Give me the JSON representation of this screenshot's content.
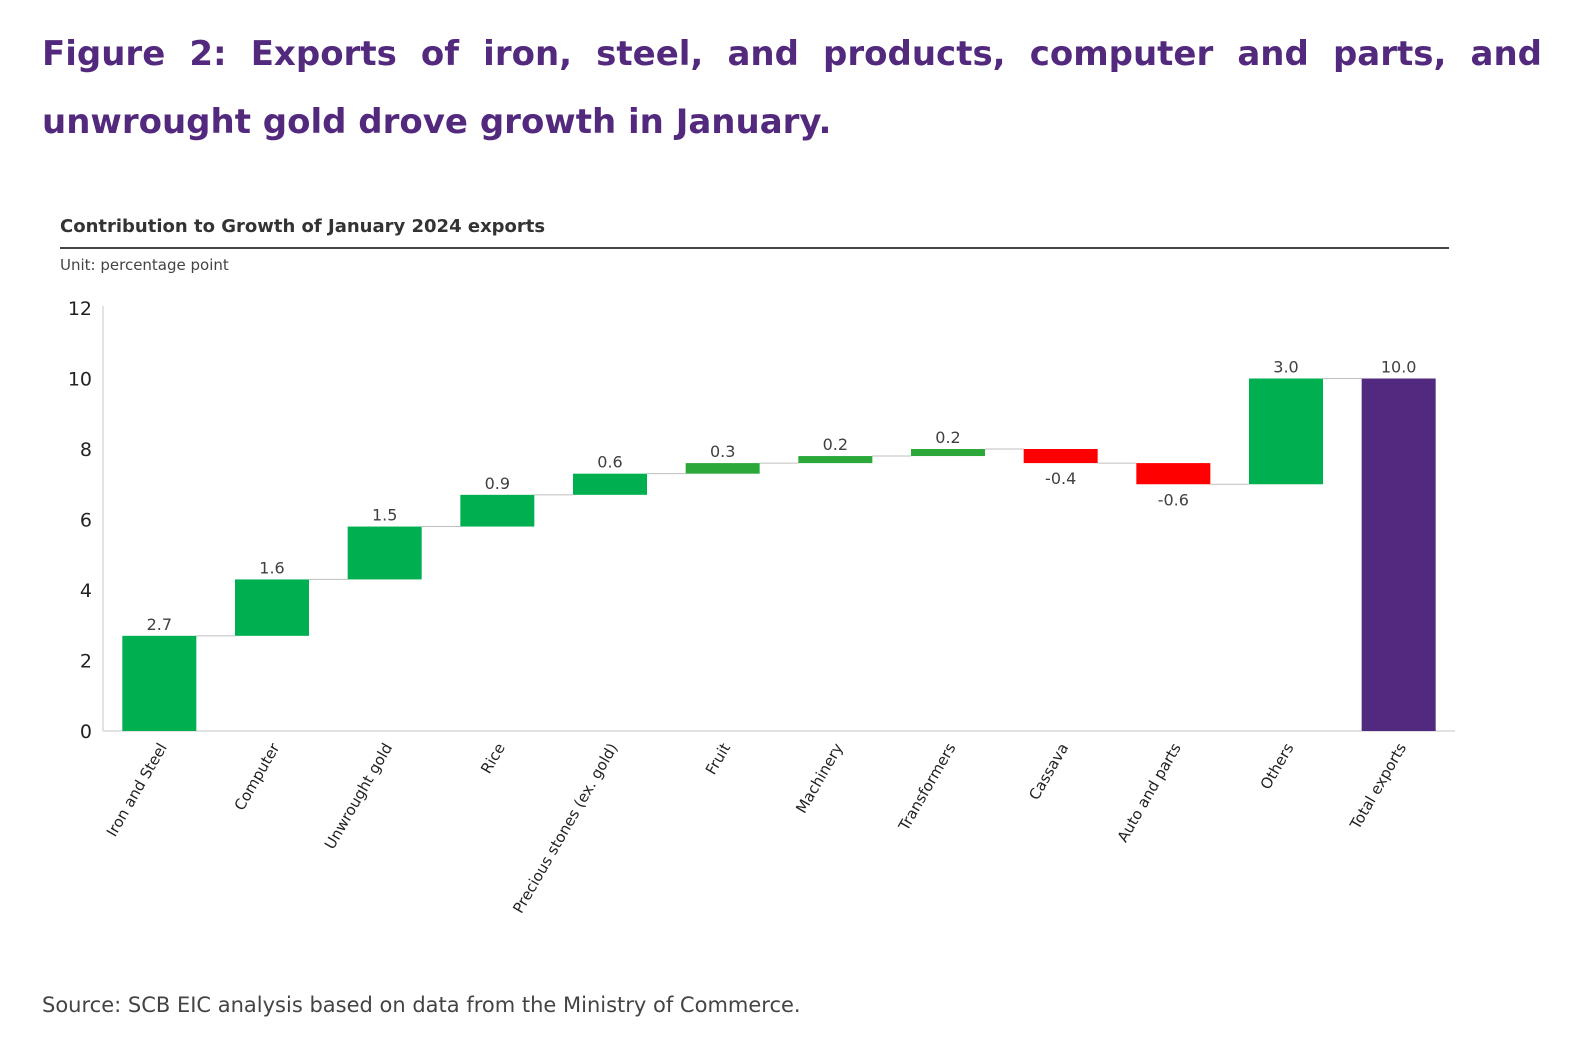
{
  "figure_title": "Figure 2: Exports of iron, steel, and products, computer and parts, and unwrought gold drove growth in January.",
  "source": "Source: SCB EIC analysis based on data from the Ministry of Commerce.",
  "chart_data": {
    "type": "waterfall",
    "title": "Contribution to Growth of January 2024 exports",
    "unit": "Unit: percentage point",
    "categories": [
      "Iron and Steel",
      "Computer",
      "Unwrought gold",
      "Rice",
      "Precious stones (ex. gold)",
      "Fruit",
      "Machinery",
      "Transformers",
      "Cassava",
      "Auto and parts",
      "Others",
      "Total exports"
    ],
    "values": [
      2.7,
      1.6,
      1.5,
      0.9,
      0.6,
      0.3,
      0.2,
      0.2,
      -0.4,
      -0.6,
      3.0,
      10.0
    ],
    "labels": [
      "2.7",
      "1.6",
      "1.5",
      "0.9",
      "0.6",
      "0.3",
      "0.2",
      "0.2",
      "-0.4",
      "-0.6",
      "3.0",
      "10.0"
    ],
    "starts": [
      0,
      2.7,
      4.3,
      5.8,
      6.7,
      7.3,
      7.6,
      7.8,
      8.0,
      7.6,
      7.0,
      0
    ],
    "is_total": [
      false,
      false,
      false,
      false,
      false,
      false,
      false,
      false,
      false,
      false,
      false,
      true
    ],
    "ylim": [
      0,
      12
    ],
    "yticks": [
      0,
      2,
      4,
      6,
      8,
      10,
      12
    ],
    "colors": {
      "increase": "#00b050",
      "increase_small": "#2ca83a",
      "decrease": "#ff0000",
      "total": "#512a80",
      "axis": "#d9d9d9",
      "connector": "#bfbfbf",
      "text": "#404040"
    }
  }
}
